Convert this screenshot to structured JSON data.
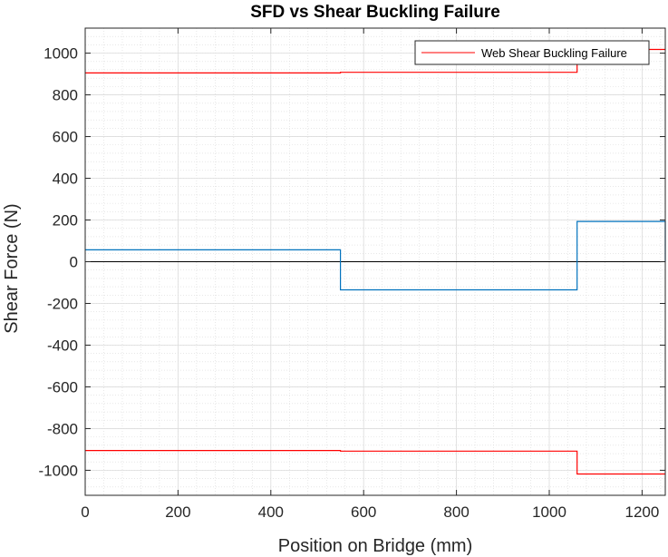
{
  "chart_data": {
    "type": "line",
    "title": "SFD vs Shear Buckling Failure",
    "xlabel": "Position on Bridge (mm)",
    "ylabel": "Shear Force (N)",
    "xlim": [
      0,
      1250
    ],
    "ylim": [
      -1120,
      1120
    ],
    "xticks": [
      0,
      200,
      400,
      600,
      800,
      1000,
      1200
    ],
    "yticks": [
      -1000,
      -800,
      -600,
      -400,
      -200,
      0,
      200,
      400,
      600,
      800,
      1000
    ],
    "grid": true,
    "minor_grid": true,
    "legend_position": "top-right",
    "zero_line": true,
    "series": [
      {
        "name": "",
        "color": "#0072BD",
        "x": [
          0,
          550,
          550,
          1060,
          1060,
          1250,
          1250
        ],
        "y": [
          57,
          57,
          -135,
          -135,
          193,
          193,
          0
        ]
      },
      {
        "name": "Web Shear Buckling Failure",
        "color": "#FF0000",
        "x": [
          0,
          550,
          550,
          1060,
          1060,
          1250
        ],
        "y": [
          905,
          905,
          908,
          908,
          1018,
          1018
        ]
      },
      {
        "name": "",
        "color": "#FF0000",
        "x": [
          0,
          550,
          550,
          1060,
          1060,
          1250
        ],
        "y": [
          -905,
          -905,
          -908,
          -908,
          -1018,
          -1018
        ]
      }
    ]
  }
}
